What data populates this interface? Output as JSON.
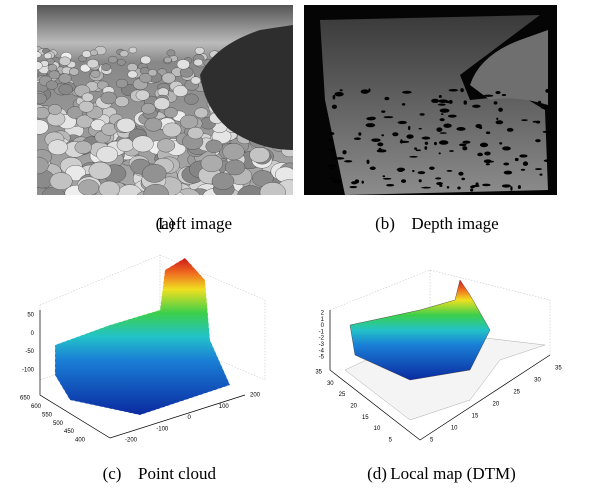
{
  "subfigures": [
    {
      "label": "(a)",
      "caption": "Left image"
    },
    {
      "label": "(b)",
      "caption": "Depth image"
    },
    {
      "label": "(c)",
      "caption": "Point cloud"
    },
    {
      "label": "(d)",
      "caption": "Local map (DTM)"
    }
  ],
  "point_cloud": {
    "z_ticks": [
      "50",
      "0",
      "-50",
      "-100"
    ],
    "y_ticks": [
      "650",
      "600",
      "550",
      "500",
      "450",
      "400"
    ],
    "x_ticks": [
      "-200",
      "-100",
      "0",
      "100",
      "200"
    ]
  },
  "local_map": {
    "z_ticks": [
      "2",
      "1",
      "0",
      "-1",
      "-2",
      "-3",
      "-4",
      "-5"
    ],
    "y_ticks": [
      "35",
      "30",
      "25",
      "20",
      "15",
      "10",
      "5"
    ],
    "x_ticks": [
      "5",
      "10",
      "15",
      "20",
      "25",
      "30",
      "35"
    ]
  }
}
